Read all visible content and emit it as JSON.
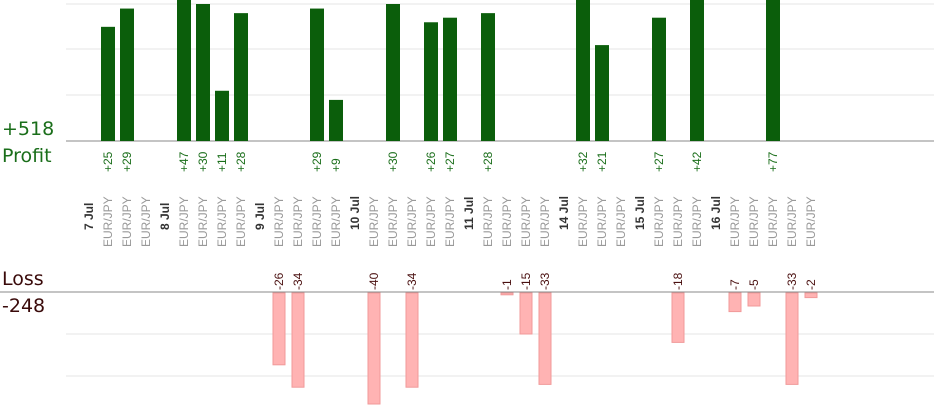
{
  "summary": {
    "profit_total": "+518",
    "profit_label": "Profit",
    "loss_label": "Loss",
    "loss_total": "-248"
  },
  "colors": {
    "profit_bar": "#0b5e0b",
    "profit_text": "#1a6e1a",
    "loss_bar": "#ffb3b3",
    "loss_text": "#4a1010",
    "date_text": "#333333",
    "slot_text": "#999999",
    "grid": "#e6e6e6",
    "axis": "#888888"
  },
  "chart_data": {
    "type": "bar",
    "title": "",
    "grid": true,
    "days": [
      {
        "date": "7 Jul",
        "trades": [
          {
            "symbol": "EUR/JPY",
            "profit": 25
          },
          {
            "symbol": "EUR/JPY",
            "profit": 29
          },
          {
            "symbol": "EUR/JPY"
          }
        ]
      },
      {
        "date": "8 Jul",
        "trades": [
          {
            "symbol": "EUR/JPY",
            "profit": 47
          },
          {
            "symbol": "EUR/JPY",
            "profit": 30
          },
          {
            "symbol": "EUR/JPY",
            "profit": 11
          },
          {
            "symbol": "EUR/JPY",
            "profit": 28
          }
        ]
      },
      {
        "date": "9 Jul",
        "trades": [
          {
            "symbol": "EUR/JPY",
            "loss": -26
          },
          {
            "symbol": "EUR/JPY",
            "loss": -34
          },
          {
            "symbol": "EUR/JPY",
            "profit": 29
          },
          {
            "symbol": "EUR/JPY",
            "profit": 9
          }
        ]
      },
      {
        "date": "10 Jul",
        "trades": [
          {
            "symbol": "EUR/JPY",
            "loss": -40
          },
          {
            "symbol": "EUR/JPY",
            "profit": 30
          },
          {
            "symbol": "EUR/JPY",
            "loss": -34
          },
          {
            "symbol": "EUR/JPY",
            "profit": 26
          },
          {
            "symbol": "EUR/JPY",
            "profit": 27
          }
        ]
      },
      {
        "date": "11 Jul",
        "trades": [
          {
            "symbol": "EUR/JPY",
            "profit": 28
          },
          {
            "symbol": "EUR/JPY",
            "loss": -1
          },
          {
            "symbol": "EUR/JPY",
            "loss": -15
          },
          {
            "symbol": "EUR/JPY",
            "loss": -33
          }
        ]
      },
      {
        "date": "14 Jul",
        "trades": [
          {
            "symbol": "EUR/JPY",
            "profit": 32
          },
          {
            "symbol": "EUR/JPY",
            "profit": 21
          },
          {
            "symbol": "EUR/JPY"
          }
        ]
      },
      {
        "date": "15 Jul",
        "trades": [
          {
            "symbol": "EUR/JPY",
            "profit": 27
          },
          {
            "symbol": "EUR/JPY",
            "loss": -18
          },
          {
            "symbol": "EUR/JPY",
            "profit": 42
          }
        ]
      },
      {
        "date": "16 Jul",
        "trades": [
          {
            "symbol": "EUR/JPY",
            "loss": -7
          },
          {
            "symbol": "EUR/JPY",
            "loss": -5
          },
          {
            "symbol": "EUR/JPY",
            "profit": 77
          },
          {
            "symbol": "EUR/JPY",
            "loss": -33
          },
          {
            "symbol": "EUR/JPY",
            "loss": -2
          }
        ]
      }
    ],
    "profit_axis": {
      "min": 0,
      "max": 30
    },
    "loss_axis": {
      "min": -30,
      "max": 0
    }
  }
}
